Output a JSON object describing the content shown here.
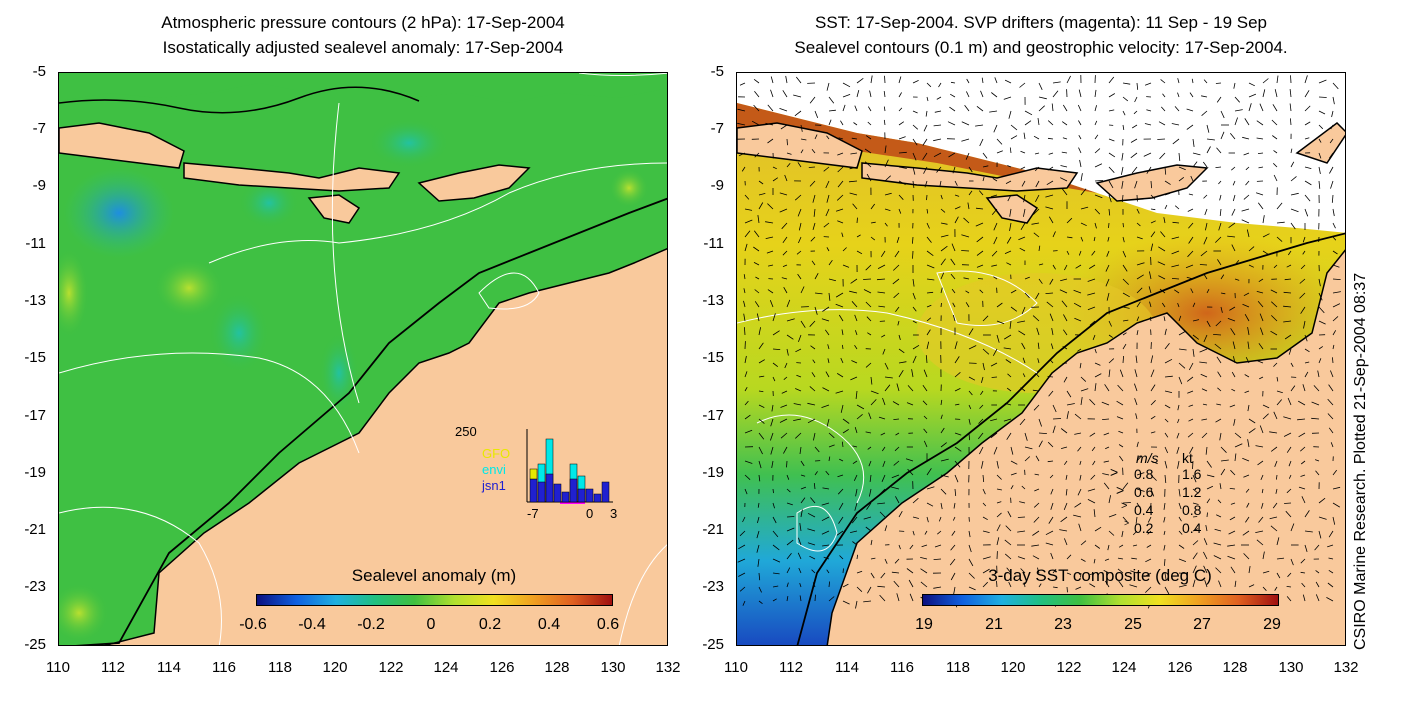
{
  "left_panel": {
    "title_line1": "Atmospheric pressure contours (2 hPa): 17-Sep-2004",
    "title_line2": "Isostatically adjusted sealevel anomaly: 17-Sep-2004",
    "colorbar_title": "Sealevel anomaly (m)",
    "colorbar_ticks": [
      "-0.6",
      "-0.4",
      "-0.2",
      "0",
      "0.2",
      "0.4",
      "0.6"
    ],
    "inset": {
      "ymax_label": "250",
      "x_ticks": [
        "-7",
        "0",
        "3"
      ],
      "legend": [
        {
          "label": "GFO",
          "color": "#e8e800"
        },
        {
          "label": "envi",
          "color": "#00e8e8"
        },
        {
          "label": "jsn1",
          "color": "#2020d0"
        }
      ]
    }
  },
  "right_panel": {
    "title_line1": "SST: 17-Sep-2004. SVP drifters (magenta): 11 Sep - 19 Sep",
    "title_line2": "Sealevel contours (0.1 m) and geostrophic velocity: 17-Sep-2004.",
    "colorbar_title": "3-day SST composite (deg C)",
    "colorbar_ticks": [
      "19",
      "21",
      "23",
      "25",
      "27",
      "29"
    ],
    "vector_legend": {
      "header_ms": "m/s",
      "header_kt": "kt",
      "rows": [
        {
          "ms": "0.8",
          "kt": "1.6"
        },
        {
          "ms": "0.6",
          "kt": "1.2"
        },
        {
          "ms": "0.4",
          "kt": "0.8"
        },
        {
          "ms": "0.2",
          "kt": "0.4"
        }
      ]
    }
  },
  "axes": {
    "y_ticks": [
      "-5",
      "-7",
      "-9",
      "-11",
      "-13",
      "-15",
      "-17",
      "-19",
      "-21",
      "-23",
      "-25"
    ],
    "x_ticks": [
      "110",
      "112",
      "114",
      "116",
      "118",
      "120",
      "122",
      "124",
      "126",
      "128",
      "130",
      "132"
    ]
  },
  "credit": "CSIRO Marine Research. Plotted 21-Sep-2004 08:37",
  "colors": {
    "land": "#f9c99c",
    "sea_green": "#33bb44",
    "sst_warm": "#e08a1a",
    "sst_yellow": "#e6d21a"
  }
}
